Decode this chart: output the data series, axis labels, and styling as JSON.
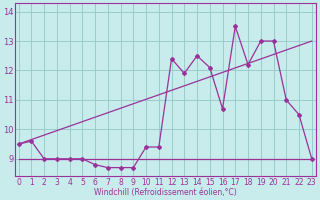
{
  "x_values": [
    0,
    1,
    2,
    3,
    4,
    5,
    6,
    7,
    8,
    9,
    10,
    11,
    12,
    13,
    14,
    15,
    16,
    17,
    18,
    19,
    20,
    21,
    22,
    23
  ],
  "windchill": [
    9.5,
    9.6,
    9.0,
    9.0,
    9.0,
    9.0,
    8.8,
    8.7,
    8.7,
    8.7,
    9.4,
    9.4,
    12.4,
    11.9,
    12.5,
    12.1,
    10.7,
    13.5,
    12.2,
    13.0,
    13.0,
    11.0,
    10.5,
    9.0
  ],
  "trend_line_x": [
    0,
    23
  ],
  "trend_line_y": [
    9.5,
    13.0
  ],
  "flat_line_x": [
    0,
    23
  ],
  "flat_line_y": [
    9.0,
    9.0
  ],
  "line_color": "#993399",
  "background_color": "#c8ebeb",
  "grid_color": "#99cccc",
  "xlabel": "Windchill (Refroidissement éolien,°C)",
  "ylim_min": 8.4,
  "ylim_max": 14.3,
  "xlim_min": -0.3,
  "xlim_max": 23.3,
  "yticks": [
    9,
    10,
    11,
    12,
    13,
    14
  ],
  "xticks": [
    0,
    1,
    2,
    3,
    4,
    5,
    6,
    7,
    8,
    9,
    10,
    11,
    12,
    13,
    14,
    15,
    16,
    17,
    18,
    19,
    20,
    21,
    22,
    23
  ],
  "tick_fontsize": 5.5,
  "xlabel_fontsize": 5.5
}
